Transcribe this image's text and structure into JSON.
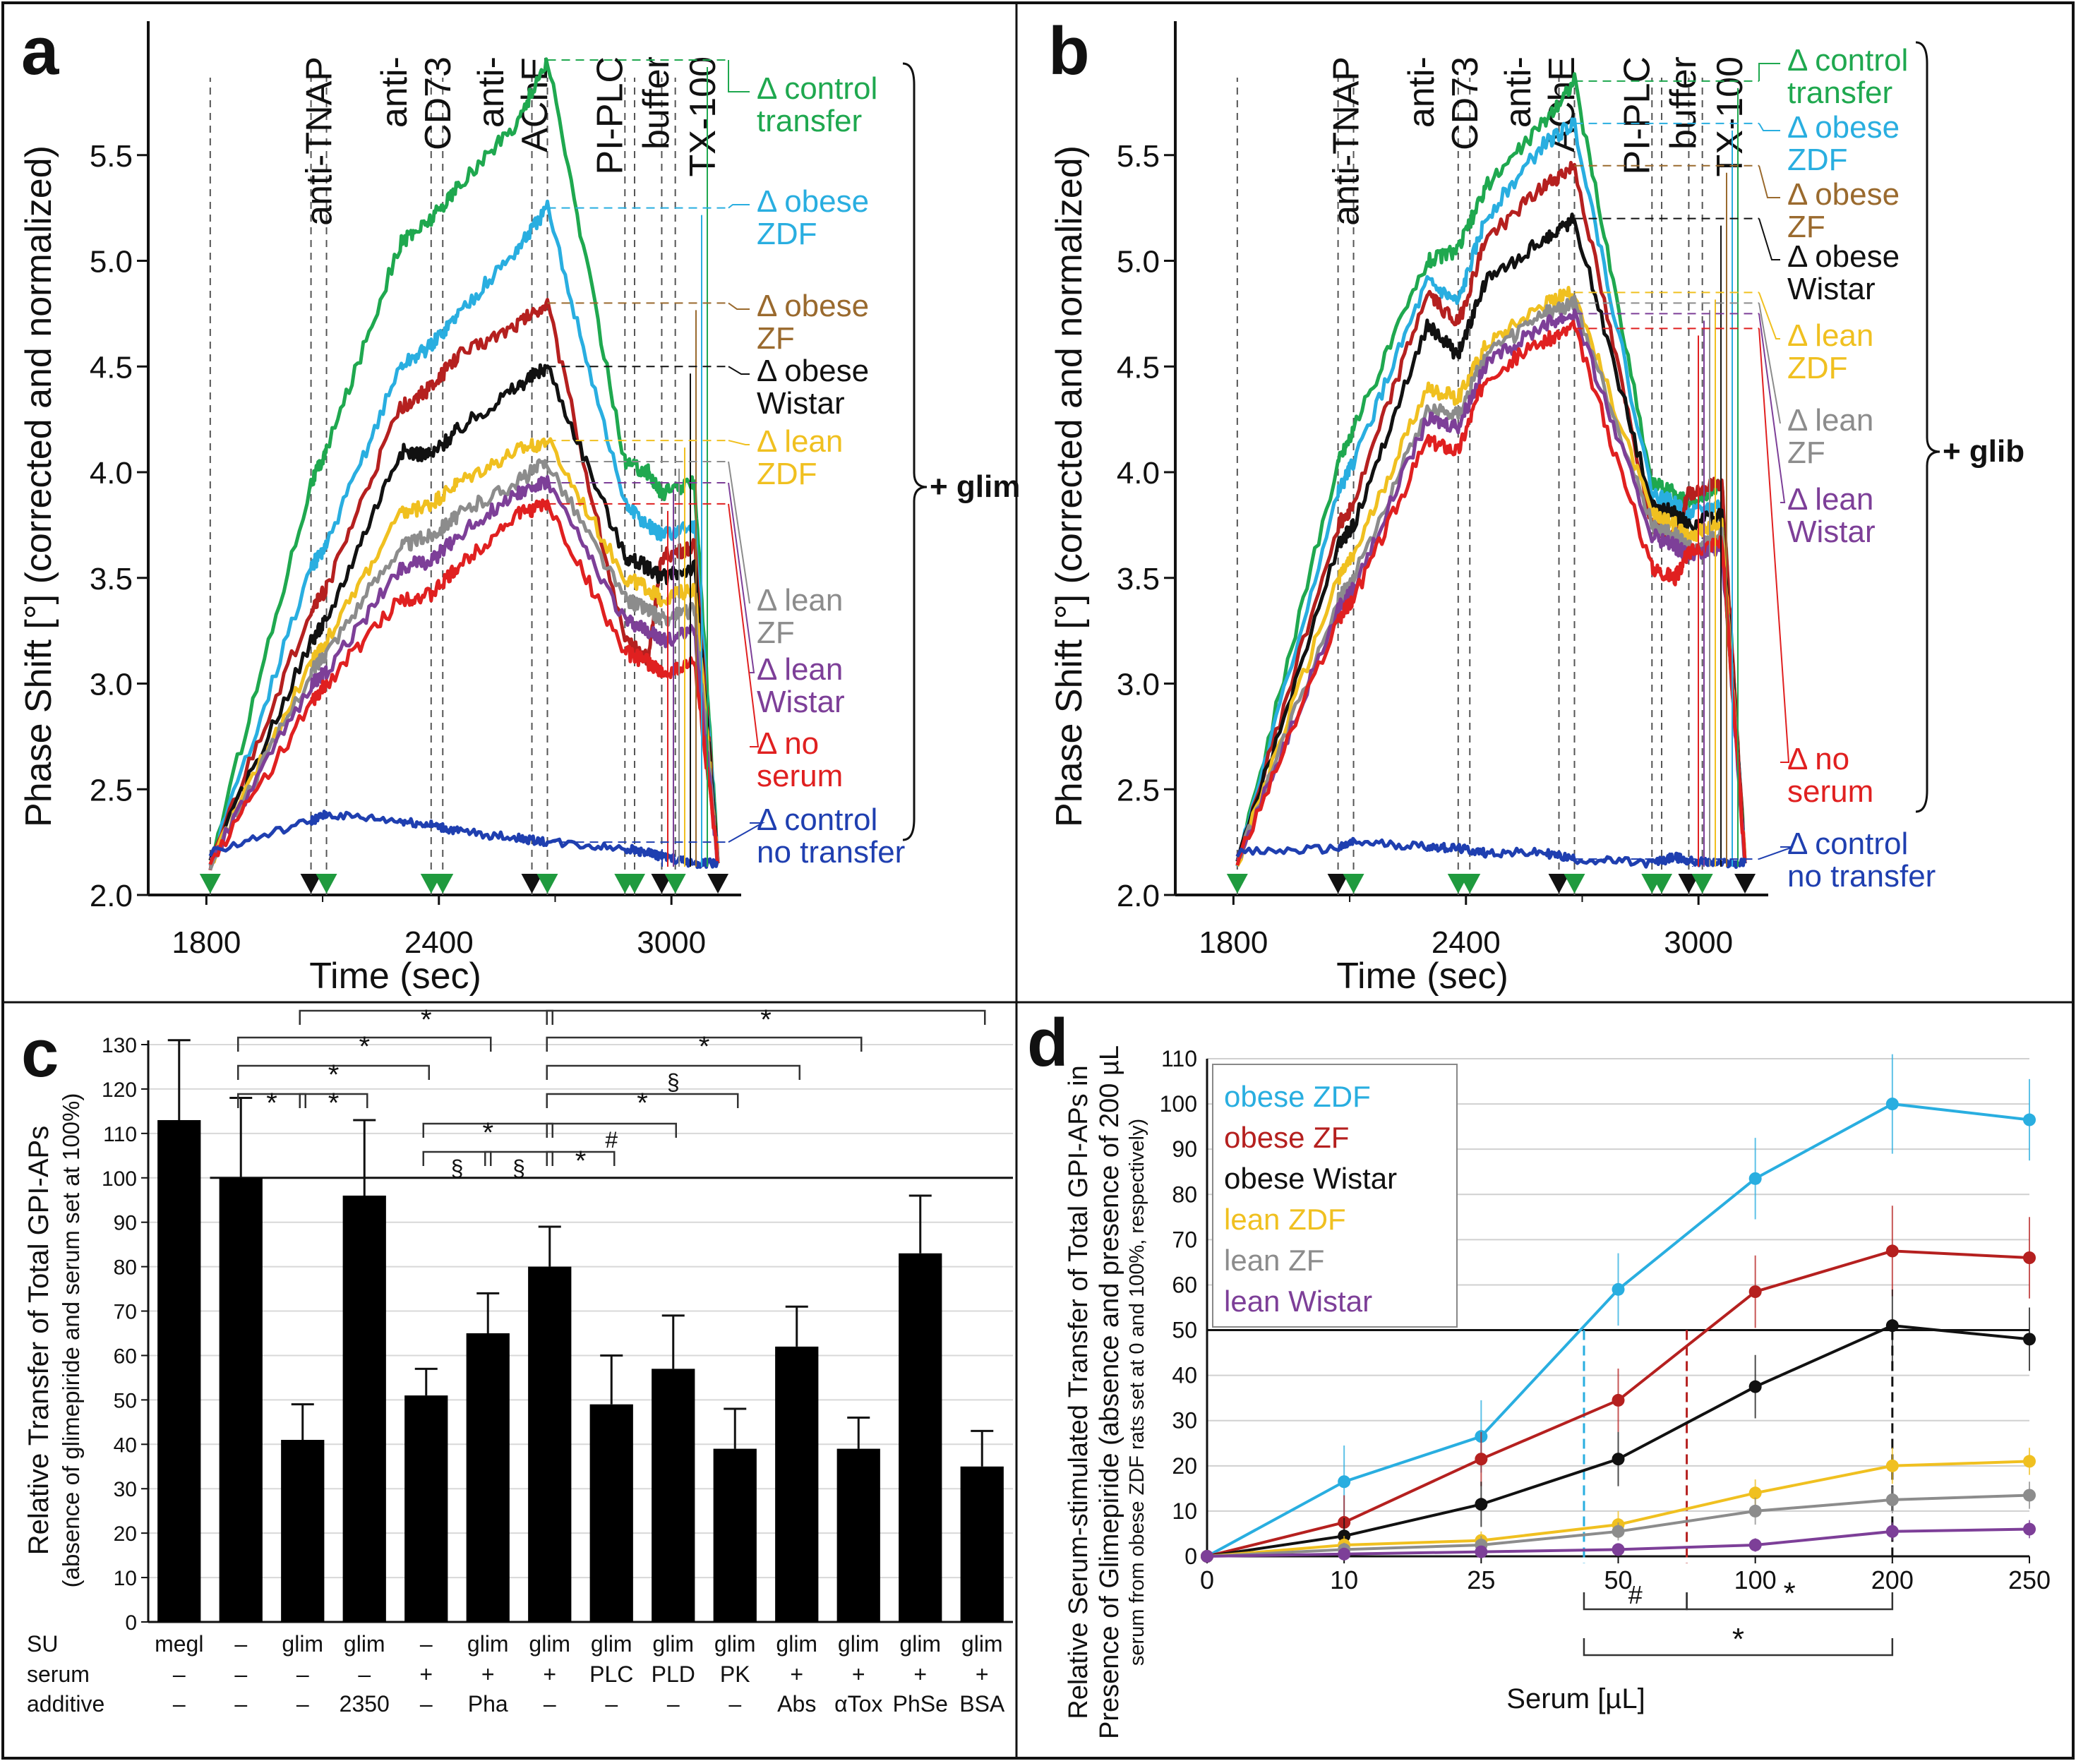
{
  "colors": {
    "control_transfer": "#1fa84f",
    "obese_ZDF": "#29aee0",
    "obese_ZF": "#b5201f",
    "obese_Wistar": "#111111",
    "lean_ZDF": "#f0c020",
    "lean_ZF": "#8c8c8c",
    "lean_Wistar": "#7d3f98",
    "no_serum": "#e02020",
    "control_no_transfer": "#1f3fb0",
    "label_obese_ZF": "#9a6a2e",
    "marker_green": "#1f9a3e"
  },
  "chart_data": [
    {
      "panel": "a",
      "type": "line",
      "xlabel": "Time (sec)",
      "ylabel": "Phase Shift [°] (corrected and normalized)",
      "xlim": [
        1650,
        3180
      ],
      "ylim": [
        2.0,
        6.0
      ],
      "xticks": [
        {
          "value": 1800,
          "label": "1800"
        },
        {
          "value": 2400,
          "label": "2400"
        },
        {
          "value": 3000,
          "label": "3000"
        }
      ],
      "yticks": [
        {
          "value": 2.0,
          "label": "2.0"
        },
        {
          "value": 2.5,
          "label": "2.5"
        },
        {
          "value": 3.0,
          "label": "3.0"
        },
        {
          "value": 3.5,
          "label": "3.5"
        },
        {
          "value": 4.0,
          "label": "4.0"
        },
        {
          "value": 4.5,
          "label": "4.5"
        },
        {
          "value": 5.0,
          "label": "5.0"
        },
        {
          "value": 5.5,
          "label": "5.5"
        }
      ],
      "treatments": [
        {
          "x": 2090,
          "lines": [
            "anti-TNAP"
          ]
        },
        {
          "x": 2340,
          "lines": [
            "anti-",
            "CD73"
          ]
        },
        {
          "x": 2590,
          "lines": [
            "anti-",
            "AChE"
          ]
        },
        {
          "x": 2840,
          "lines": [
            "PI-PLC"
          ]
        },
        {
          "x": 2960,
          "lines": [
            "buffer"
          ]
        },
        {
          "x": 3080,
          "lines": [
            "TX-100"
          ]
        }
      ],
      "event_lines": [
        1810,
        2070,
        2110,
        2380,
        2410,
        2640,
        2680,
        2880,
        2905,
        2975,
        3010
      ],
      "markers": [
        1810,
        2070,
        2110,
        2380,
        2410,
        2640,
        2680,
        2880,
        2905,
        2975,
        3010,
        3120
      ],
      "series": [
        {
          "key": "control_transfer",
          "name": "Δ control transfer",
          "lines": [
            "Δ control",
            "transfer"
          ],
          "y": [
            2.15,
            3.95,
            4.1,
            5.08,
            5.2,
            5.35,
            5.65,
            5.95,
            4.05,
            4.0,
            3.9,
            3.95,
            2.15
          ]
        },
        {
          "key": "obese_ZDF",
          "name": "Δ obese ZDF",
          "lines": [
            "Δ obese",
            "ZDF"
          ],
          "y": [
            2.15,
            3.55,
            3.65,
            4.5,
            4.6,
            4.75,
            5.05,
            5.25,
            3.85,
            3.75,
            3.7,
            3.75,
            2.15
          ]
        },
        {
          "key": "obese_ZF",
          "name": "Δ obese ZF",
          "lines": [
            "Δ obese",
            "ZF"
          ],
          "y": [
            2.15,
            3.35,
            3.45,
            4.3,
            4.4,
            4.55,
            4.7,
            4.8,
            3.2,
            3.12,
            3.6,
            3.65,
            2.15
          ]
        },
        {
          "key": "obese_Wistar",
          "name": "Δ obese Wistar",
          "lines": [
            "Δ obese",
            "Wistar"
          ],
          "y": [
            2.15,
            3.2,
            3.3,
            4.1,
            4.08,
            4.2,
            4.4,
            4.5,
            3.6,
            3.55,
            3.5,
            3.55,
            2.15
          ]
        },
        {
          "key": "lean_ZDF",
          "name": "Δ lean ZDF",
          "lines": [
            "Δ lean",
            "ZDF"
          ],
          "y": [
            2.15,
            3.1,
            3.2,
            3.8,
            3.85,
            3.95,
            4.1,
            4.15,
            3.5,
            3.45,
            3.4,
            3.45,
            2.15
          ]
        },
        {
          "key": "lean_ZF",
          "name": "Δ lean ZF",
          "lines": [
            "Δ lean",
            "ZF"
          ],
          "y": [
            2.15,
            3.05,
            3.15,
            3.65,
            3.7,
            3.8,
            3.95,
            4.05,
            3.4,
            3.35,
            3.3,
            3.35,
            2.15
          ]
        },
        {
          "key": "lean_Wistar",
          "name": "Δ lean Wistar",
          "lines": [
            "Δ lean",
            "Wistar"
          ],
          "y": [
            2.15,
            3.0,
            3.05,
            3.55,
            3.58,
            3.7,
            3.9,
            3.95,
            3.3,
            3.25,
            3.2,
            3.25,
            2.15
          ]
        },
        {
          "key": "no_serum",
          "name": "Δ no serum",
          "lines": [
            "Δ no",
            "serum"
          ],
          "y": [
            2.15,
            2.9,
            3.0,
            3.4,
            3.42,
            3.55,
            3.8,
            3.85,
            3.15,
            3.1,
            3.05,
            3.1,
            2.15
          ]
        },
        {
          "key": "control_no_transfer",
          "name": "Δ control no transfer",
          "lines": [
            "Δ control",
            "no transfer"
          ],
          "y": [
            2.2,
            2.35,
            2.38,
            2.35,
            2.33,
            2.3,
            2.27,
            2.25,
            2.22,
            2.2,
            2.18,
            2.15,
            2.15
          ]
        }
      ],
      "series_x": [
        1810,
        2070,
        2110,
        2300,
        2380,
        2450,
        2600,
        2680,
        2880,
        2940,
        2975,
        3060,
        3120
      ],
      "bracket_label": "+ glim"
    },
    {
      "panel": "b",
      "type": "line",
      "xlabel": "Time (sec)",
      "ylabel": "Phase Shift [°] (corrected and normalized)",
      "xlim": [
        1650,
        3180
      ],
      "ylim": [
        2.0,
        6.0
      ],
      "xticks": [
        {
          "value": 1800,
          "label": "1800"
        },
        {
          "value": 2400,
          "label": "2400"
        },
        {
          "value": 3000,
          "label": "3000"
        }
      ],
      "yticks": [
        {
          "value": 2.0,
          "label": "2.0"
        },
        {
          "value": 2.5,
          "label": "2.5"
        },
        {
          "value": 3.0,
          "label": "3.0"
        },
        {
          "value": 3.5,
          "label": "3.5"
        },
        {
          "value": 4.0,
          "label": "4.0"
        },
        {
          "value": 4.5,
          "label": "4.5"
        },
        {
          "value": 5.0,
          "label": "5.0"
        },
        {
          "value": 5.5,
          "label": "5.5"
        }
      ],
      "treatments": [
        {
          "x": 2090,
          "lines": [
            "anti-TNAP"
          ]
        },
        {
          "x": 2340,
          "lines": [
            "anti-",
            "CD73"
          ]
        },
        {
          "x": 2590,
          "lines": [
            "anti-",
            "AChE"
          ]
        },
        {
          "x": 2840,
          "lines": [
            "PI-PLC"
          ]
        },
        {
          "x": 2960,
          "lines": [
            "buffer"
          ]
        },
        {
          "x": 3080,
          "lines": [
            "TX-100"
          ]
        }
      ],
      "event_lines": [
        1810,
        2070,
        2110,
        2380,
        2410,
        2640,
        2680,
        2880,
        2905,
        2975,
        3010
      ],
      "markers": [
        1810,
        2070,
        2110,
        2380,
        2410,
        2640,
        2680,
        2880,
        2905,
        2975,
        3010,
        3120
      ],
      "series": [
        {
          "key": "control_transfer",
          "name": "Δ control transfer",
          "lines": [
            "Δ control",
            "transfer"
          ],
          "y": [
            2.15,
            4.05,
            4.2,
            5.0,
            5.05,
            5.35,
            5.65,
            5.85,
            3.95,
            3.9,
            3.85,
            3.95,
            2.15
          ]
        },
        {
          "key": "obese_ZDF",
          "name": "Δ obese ZDF",
          "lines": [
            "Δ obese",
            "ZDF"
          ],
          "y": [
            2.15,
            3.9,
            4.05,
            4.9,
            4.8,
            5.2,
            5.55,
            5.65,
            3.9,
            3.85,
            3.8,
            3.85,
            2.15
          ]
        },
        {
          "key": "obese_ZF",
          "name": "Δ obese ZF",
          "lines": [
            "Δ obese",
            "ZF"
          ],
          "y": [
            2.15,
            3.75,
            3.85,
            4.85,
            4.7,
            5.1,
            5.35,
            5.45,
            3.75,
            3.7,
            3.9,
            3.95,
            2.15
          ]
        },
        {
          "key": "obese_Wistar",
          "name": "Δ obese Wistar",
          "lines": [
            "Δ obese",
            "Wistar"
          ],
          "y": [
            2.15,
            3.65,
            3.75,
            4.7,
            4.55,
            4.9,
            5.1,
            5.2,
            3.85,
            3.8,
            3.75,
            3.8,
            2.15
          ]
        },
        {
          "key": "lean_ZDF",
          "name": "Δ lean ZDF",
          "lines": [
            "Δ lean",
            "ZDF"
          ],
          "y": [
            2.15,
            3.5,
            3.6,
            4.4,
            4.35,
            4.6,
            4.8,
            4.85,
            3.8,
            3.75,
            3.7,
            3.75,
            2.15
          ]
        },
        {
          "key": "lean_ZF",
          "name": "Δ lean ZF",
          "lines": [
            "Δ lean",
            "ZF"
          ],
          "y": [
            2.15,
            3.4,
            3.5,
            4.3,
            4.28,
            4.55,
            4.75,
            4.8,
            3.75,
            3.7,
            3.65,
            3.7,
            2.15
          ]
        },
        {
          "key": "lean_Wistar",
          "name": "Δ lean Wistar",
          "lines": [
            "Δ lean",
            "Wistar"
          ],
          "y": [
            2.15,
            3.35,
            3.45,
            4.25,
            4.22,
            4.5,
            4.7,
            4.75,
            3.7,
            3.65,
            3.6,
            3.65,
            2.15
          ]
        },
        {
          "key": "no_serum",
          "name": "Δ no serum",
          "lines": [
            "Δ no",
            "serum"
          ],
          "y": [
            2.15,
            3.3,
            3.4,
            4.15,
            4.1,
            4.45,
            4.62,
            4.68,
            3.55,
            3.5,
            3.62,
            3.68,
            2.15
          ]
        },
        {
          "key": "control_no_transfer",
          "name": "Δ control no transfer",
          "lines": [
            "Δ control",
            "no transfer"
          ],
          "y": [
            2.2,
            2.22,
            2.25,
            2.23,
            2.22,
            2.2,
            2.2,
            2.17,
            2.15,
            2.18,
            2.16,
            2.15,
            2.15
          ]
        }
      ],
      "series_x": [
        1810,
        2070,
        2110,
        2300,
        2380,
        2450,
        2600,
        2680,
        2880,
        2940,
        2975,
        3060,
        3120
      ],
      "bracket_label": "+ glib"
    },
    {
      "panel": "c",
      "type": "bar",
      "ylabel": "Relative Transfer of Total GPI-APs",
      "ylabel2": "(absence of glimepiride and serum set at 100%)",
      "ylim": [
        0,
        130
      ],
      "yticks": [
        0,
        10,
        20,
        30,
        40,
        50,
        60,
        70,
        80,
        90,
        100,
        110,
        120,
        130
      ],
      "reference_line": 100,
      "row_labels": [
        "SU",
        "serum",
        "additive"
      ],
      "categories": [
        {
          "su": "megl",
          "serum": "–",
          "additive": "–"
        },
        {
          "su": "–",
          "serum": "–",
          "additive": "–"
        },
        {
          "su": "glim",
          "serum": "–",
          "additive": "–"
        },
        {
          "su": "glim",
          "serum": "–",
          "additive": "2350"
        },
        {
          "su": "–",
          "serum": "+",
          "additive": "–"
        },
        {
          "su": "glim",
          "serum": "+",
          "additive": "Pha"
        },
        {
          "su": "glim",
          "serum": "+",
          "additive": "–"
        },
        {
          "su": "glim",
          "serum": "PLC",
          "additive": "–"
        },
        {
          "su": "glim",
          "serum": "PLD",
          "additive": "–"
        },
        {
          "su": "glim",
          "serum": "PK",
          "additive": "–"
        },
        {
          "su": "glim",
          "serum": "+",
          "additive": "Abs"
        },
        {
          "su": "glim",
          "serum": "+",
          "additive": "αTox"
        },
        {
          "su": "glim",
          "serum": "+",
          "additive": "PhSe"
        },
        {
          "su": "glim",
          "serum": "+",
          "additive": "BSA"
        }
      ],
      "values": [
        113,
        100,
        41,
        96,
        51,
        65,
        80,
        49,
        57,
        39,
        62,
        39,
        83,
        35
      ],
      "errors": [
        18,
        18,
        8,
        17,
        6,
        9,
        9,
        11,
        12,
        9,
        9,
        7,
        13,
        8
      ],
      "significance": [
        {
          "from": 1,
          "to": 2,
          "label": "*",
          "level": 0
        },
        {
          "from": 2,
          "to": 3,
          "label": "*",
          "level": 0
        },
        {
          "from": 1,
          "to": 4,
          "label": "*",
          "level": 1
        },
        {
          "from": 4,
          "to": 5,
          "label": "§",
          "level": -2
        },
        {
          "from": 5,
          "to": 6,
          "label": "§",
          "level": -2
        },
        {
          "from": 6,
          "to": 7,
          "label": "*",
          "level": -2
        },
        {
          "from": 4,
          "to": 6,
          "label": "*",
          "level": -1
        },
        {
          "from": 6,
          "to": 8,
          "label": "#",
          "level": -1
        },
        {
          "from": 6,
          "to": 9,
          "label": "*",
          "level": 0
        },
        {
          "from": 6,
          "to": 10,
          "label": "§",
          "level": 1
        },
        {
          "from": 1,
          "to": 5,
          "label": "*",
          "level": 2
        },
        {
          "from": 6,
          "to": 11,
          "label": "*",
          "level": 2
        },
        {
          "from": 2,
          "to": 6,
          "label": "*",
          "level": 3
        },
        {
          "from": 6,
          "to": 13,
          "label": "*",
          "level": 3
        }
      ]
    },
    {
      "panel": "d",
      "type": "line",
      "xlabel": "Serum [µL]",
      "ylabel_lines": [
        "Relative Serum-stimulated Transfer of Total GPI-APs in",
        "Presence of Glimepiride (absence and presence of 200 µL",
        "serum from obese ZDF rats set at 0 and 100%, respectively)"
      ],
      "x_categories": [
        "0",
        "10",
        "25",
        "50",
        "100",
        "200",
        "250"
      ],
      "ylim": [
        0,
        110
      ],
      "yticks": [
        0,
        10,
        20,
        30,
        40,
        50,
        60,
        70,
        80,
        90,
        100,
        110
      ],
      "reference_line": 50,
      "series": [
        {
          "key": "obese_ZDF",
          "name": "obese ZDF",
          "values": [
            0,
            16.5,
            26.5,
            59,
            83.5,
            100,
            96.5
          ],
          "errors": [
            0,
            8,
            8,
            8,
            9,
            11,
            9
          ]
        },
        {
          "key": "obese_ZF",
          "name": "obese ZF",
          "values": [
            0,
            7.5,
            21.5,
            34.5,
            58.5,
            67.5,
            66
          ],
          "errors": [
            0,
            6,
            6,
            7,
            8,
            10,
            9
          ]
        },
        {
          "key": "obese_Wistar",
          "name": "obese Wistar",
          "values": [
            0,
            4.5,
            11.5,
            21.5,
            37.5,
            51,
            48
          ],
          "errors": [
            0,
            4,
            5,
            6,
            7,
            8,
            7
          ]
        },
        {
          "key": "lean_ZDF",
          "name": "lean ZDF",
          "values": [
            0,
            2.5,
            3.5,
            7,
            14,
            20,
            21
          ],
          "errors": [
            0,
            2,
            2,
            3,
            3,
            4,
            3
          ]
        },
        {
          "key": "lean_ZF",
          "name": "lean ZF",
          "values": [
            0,
            1.5,
            2.5,
            5.5,
            10,
            12.5,
            13.5
          ],
          "errors": [
            0,
            1.5,
            2,
            2,
            3,
            3,
            3
          ]
        },
        {
          "key": "lean_Wistar",
          "name": "lean Wistar",
          "values": [
            0,
            0.5,
            1,
            1.5,
            2.5,
            5.5,
            6
          ],
          "errors": [
            0,
            1,
            1,
            1,
            1.5,
            2,
            2
          ]
        }
      ],
      "half_max_indices": [
        2.75,
        3.5,
        5
      ],
      "significance": [
        {
          "from": 2.75,
          "to": 3.5,
          "label": "#",
          "level": 0
        },
        {
          "from": 3.5,
          "to": 5,
          "label": "*",
          "level": 0
        },
        {
          "from": 2.75,
          "to": 5,
          "label": "*",
          "level": 1
        }
      ]
    }
  ],
  "panel_letters": [
    "a",
    "b",
    "c",
    "d"
  ]
}
